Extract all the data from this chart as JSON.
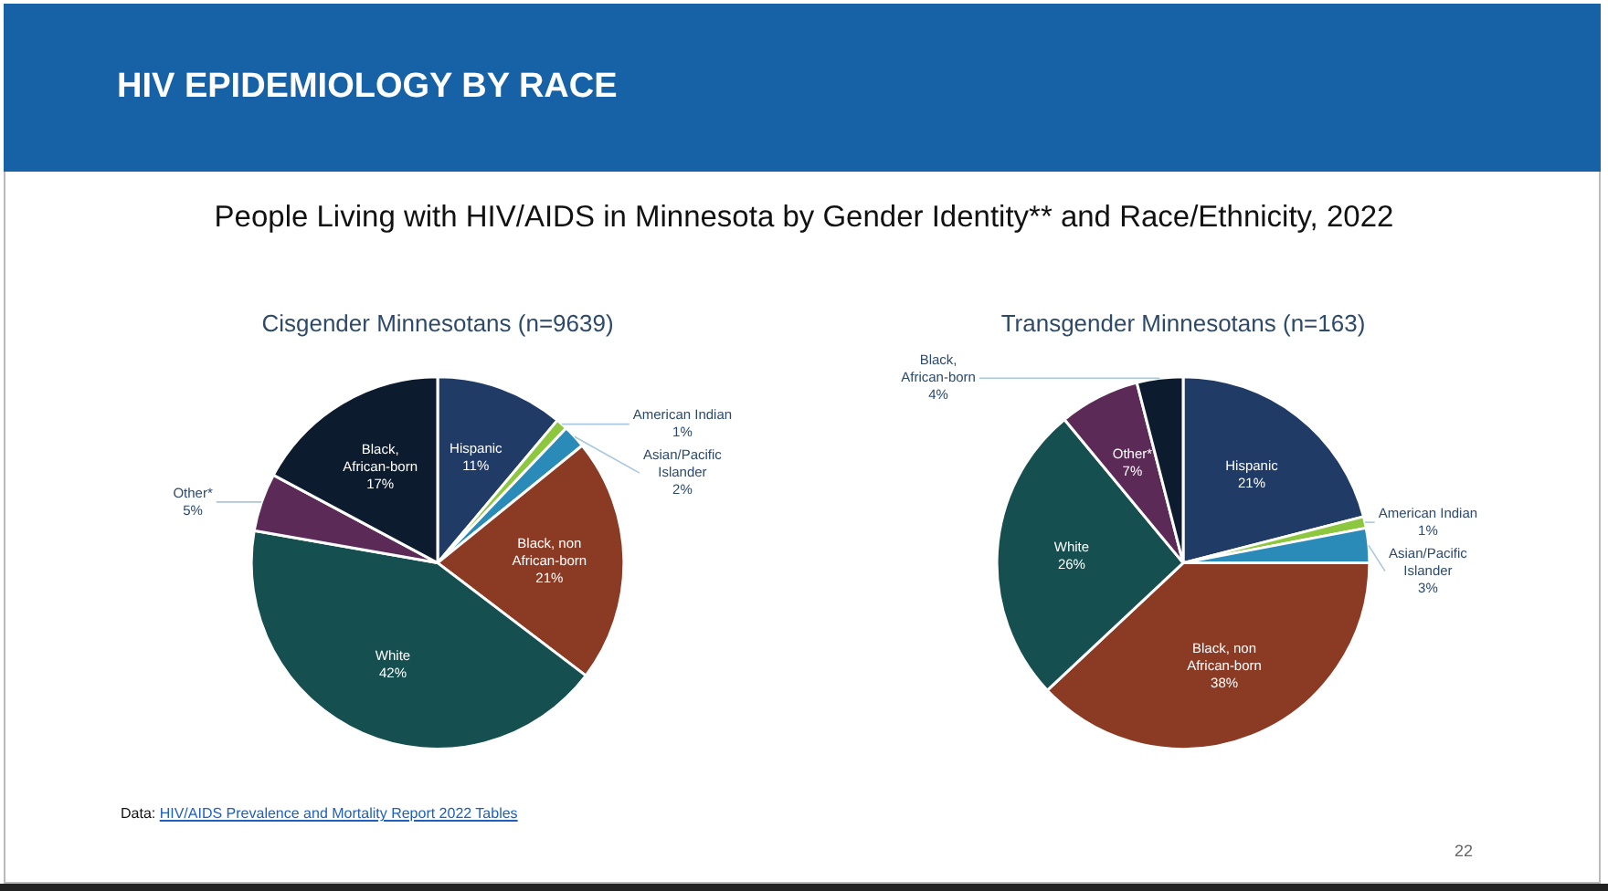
{
  "chart_data": [
    {
      "type": "pie",
      "title": "Cisgender Minnesotans (n=9639)",
      "categories": [
        "Hispanic",
        "American Indian",
        "Asian/Pacific Islander",
        "Black, non African-born",
        "White",
        "Other*",
        "Black, African-born"
      ],
      "values": [
        11,
        1,
        2,
        21,
        42,
        5,
        17
      ],
      "colors": [
        "#1f3b66",
        "#8dc63f",
        "#2a8ab8",
        "#8b3a24",
        "#164f4f",
        "#5c2a56",
        "#0d1b2e"
      ],
      "value_labels": [
        "11%",
        "1%",
        "2%",
        "21%",
        "42%",
        "5%",
        "17%"
      ],
      "legend": false,
      "annotations": [
        "HIV EPIDEMIOLOGY BY RACE",
        "People Living with HIV/AIDS in Minnesota by Gender Identity** and Race/Ethnicity, 2022",
        "Data: HIV/AIDS Prevalence and Mortality Report 2022 Tables",
        "22"
      ]
    },
    {
      "type": "pie",
      "title": "Transgender Minnesotans (n=163)",
      "categories": [
        "Hispanic",
        "American Indian",
        "Asian/Pacific Islander",
        "Black, non African-born",
        "White",
        "Other*",
        "Black, African-born"
      ],
      "values": [
        21,
        1,
        3,
        38,
        26,
        7,
        4
      ],
      "colors": [
        "#1f3b66",
        "#8dc63f",
        "#2a8ab8",
        "#8b3a24",
        "#164f4f",
        "#5c2a56",
        "#0d1b2e"
      ],
      "value_labels": [
        "21%",
        "1%",
        "3%",
        "38%",
        "26%",
        "7%",
        "4%"
      ],
      "legend": false
    }
  ]
}
